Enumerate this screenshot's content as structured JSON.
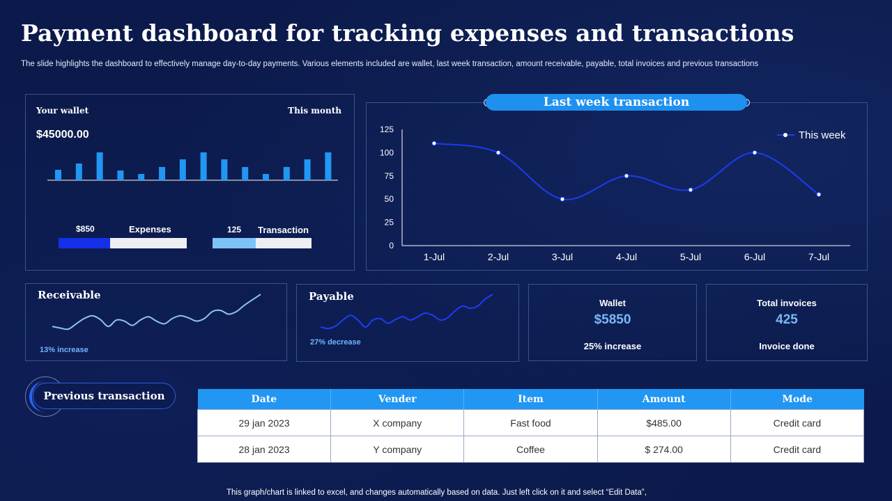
{
  "header": {
    "title": "Payment dashboard for tracking expenses and transactions",
    "subtitle": "The slide highlights the dashboard to effectively manage day-to-day payments. Various elements included are wallet, last week transaction, amount receivable, payable, total invoices and previous transactions"
  },
  "wallet_card": {
    "label": "Your wallet",
    "period": "This month",
    "amount": "$45000.00",
    "expenses_value": "$850",
    "expenses_label": "Expenses",
    "transaction_value": "125",
    "transaction_label": "Transaction",
    "expenses_fill": 0.4,
    "transaction_fill": 0.44
  },
  "last_week": {
    "title": "Last week transaction"
  },
  "receivable": {
    "title": "Receivable",
    "note": "13% increase"
  },
  "payable": {
    "title": "Payable",
    "note": "27% decrease"
  },
  "wallet_stat": {
    "label": "Wallet",
    "value": "$5850",
    "note": "25% increase"
  },
  "invoices_stat": {
    "label": "Total invoices",
    "value": "425",
    "note": "Invoice done"
  },
  "previous": {
    "button_label": "Previous transaction",
    "columns": [
      "Date",
      "Vender",
      "Item",
      "Amount",
      "Mode"
    ],
    "rows": [
      [
        "29 jan 2023",
        "X company",
        "Fast food",
        "$485.00",
        "Credit card"
      ],
      [
        "28 jan 2023",
        "Y company",
        "Coffee",
        "$ 274.00",
        "Credit card"
      ]
    ]
  },
  "footer": {
    "note": "This graph/chart is linked to excel, and changes automatically based on data. Just left click on it and select “Edit Data”,"
  },
  "colors": {
    "background": "#0b1a4a",
    "accent": "#1e90f0",
    "line": "#1a3cf0",
    "bar": "#2196f3"
  },
  "chart_data": [
    {
      "type": "line",
      "title": "Last week transaction",
      "categories": [
        "1-Jul",
        "2-Jul",
        "3-Jul",
        "4-Jul",
        "5-Jul",
        "6-Jul",
        "7-Jul"
      ],
      "series": [
        {
          "name": "This week",
          "values": [
            110,
            100,
            50,
            75,
            60,
            100,
            55
          ]
        }
      ],
      "ylim": [
        0,
        125
      ],
      "yticks": [
        0,
        25,
        50,
        75,
        100,
        125
      ],
      "legend": "top-right",
      "grid": false,
      "smooth": true
    },
    {
      "type": "bar",
      "title": "Your wallet",
      "values": [
        15,
        24,
        40,
        14,
        9,
        19,
        30,
        40,
        30,
        19,
        9,
        19,
        30,
        40
      ],
      "ylim": [
        0,
        40
      ]
    },
    {
      "type": "line",
      "title": "Receivable",
      "values": [
        30,
        27,
        25,
        35,
        45,
        50,
        43,
        30,
        42,
        40,
        32,
        42,
        48,
        40,
        35,
        45,
        50,
        46,
        40,
        45,
        58,
        60,
        53,
        58,
        70,
        80,
        90
      ],
      "smooth": true
    },
    {
      "type": "line",
      "title": "Payable",
      "values": [
        30,
        27,
        32,
        45,
        55,
        45,
        30,
        45,
        48,
        38,
        46,
        52,
        45,
        52,
        60,
        55,
        45,
        50,
        65,
        75,
        70,
        75,
        90,
        100
      ],
      "smooth": true
    }
  ]
}
